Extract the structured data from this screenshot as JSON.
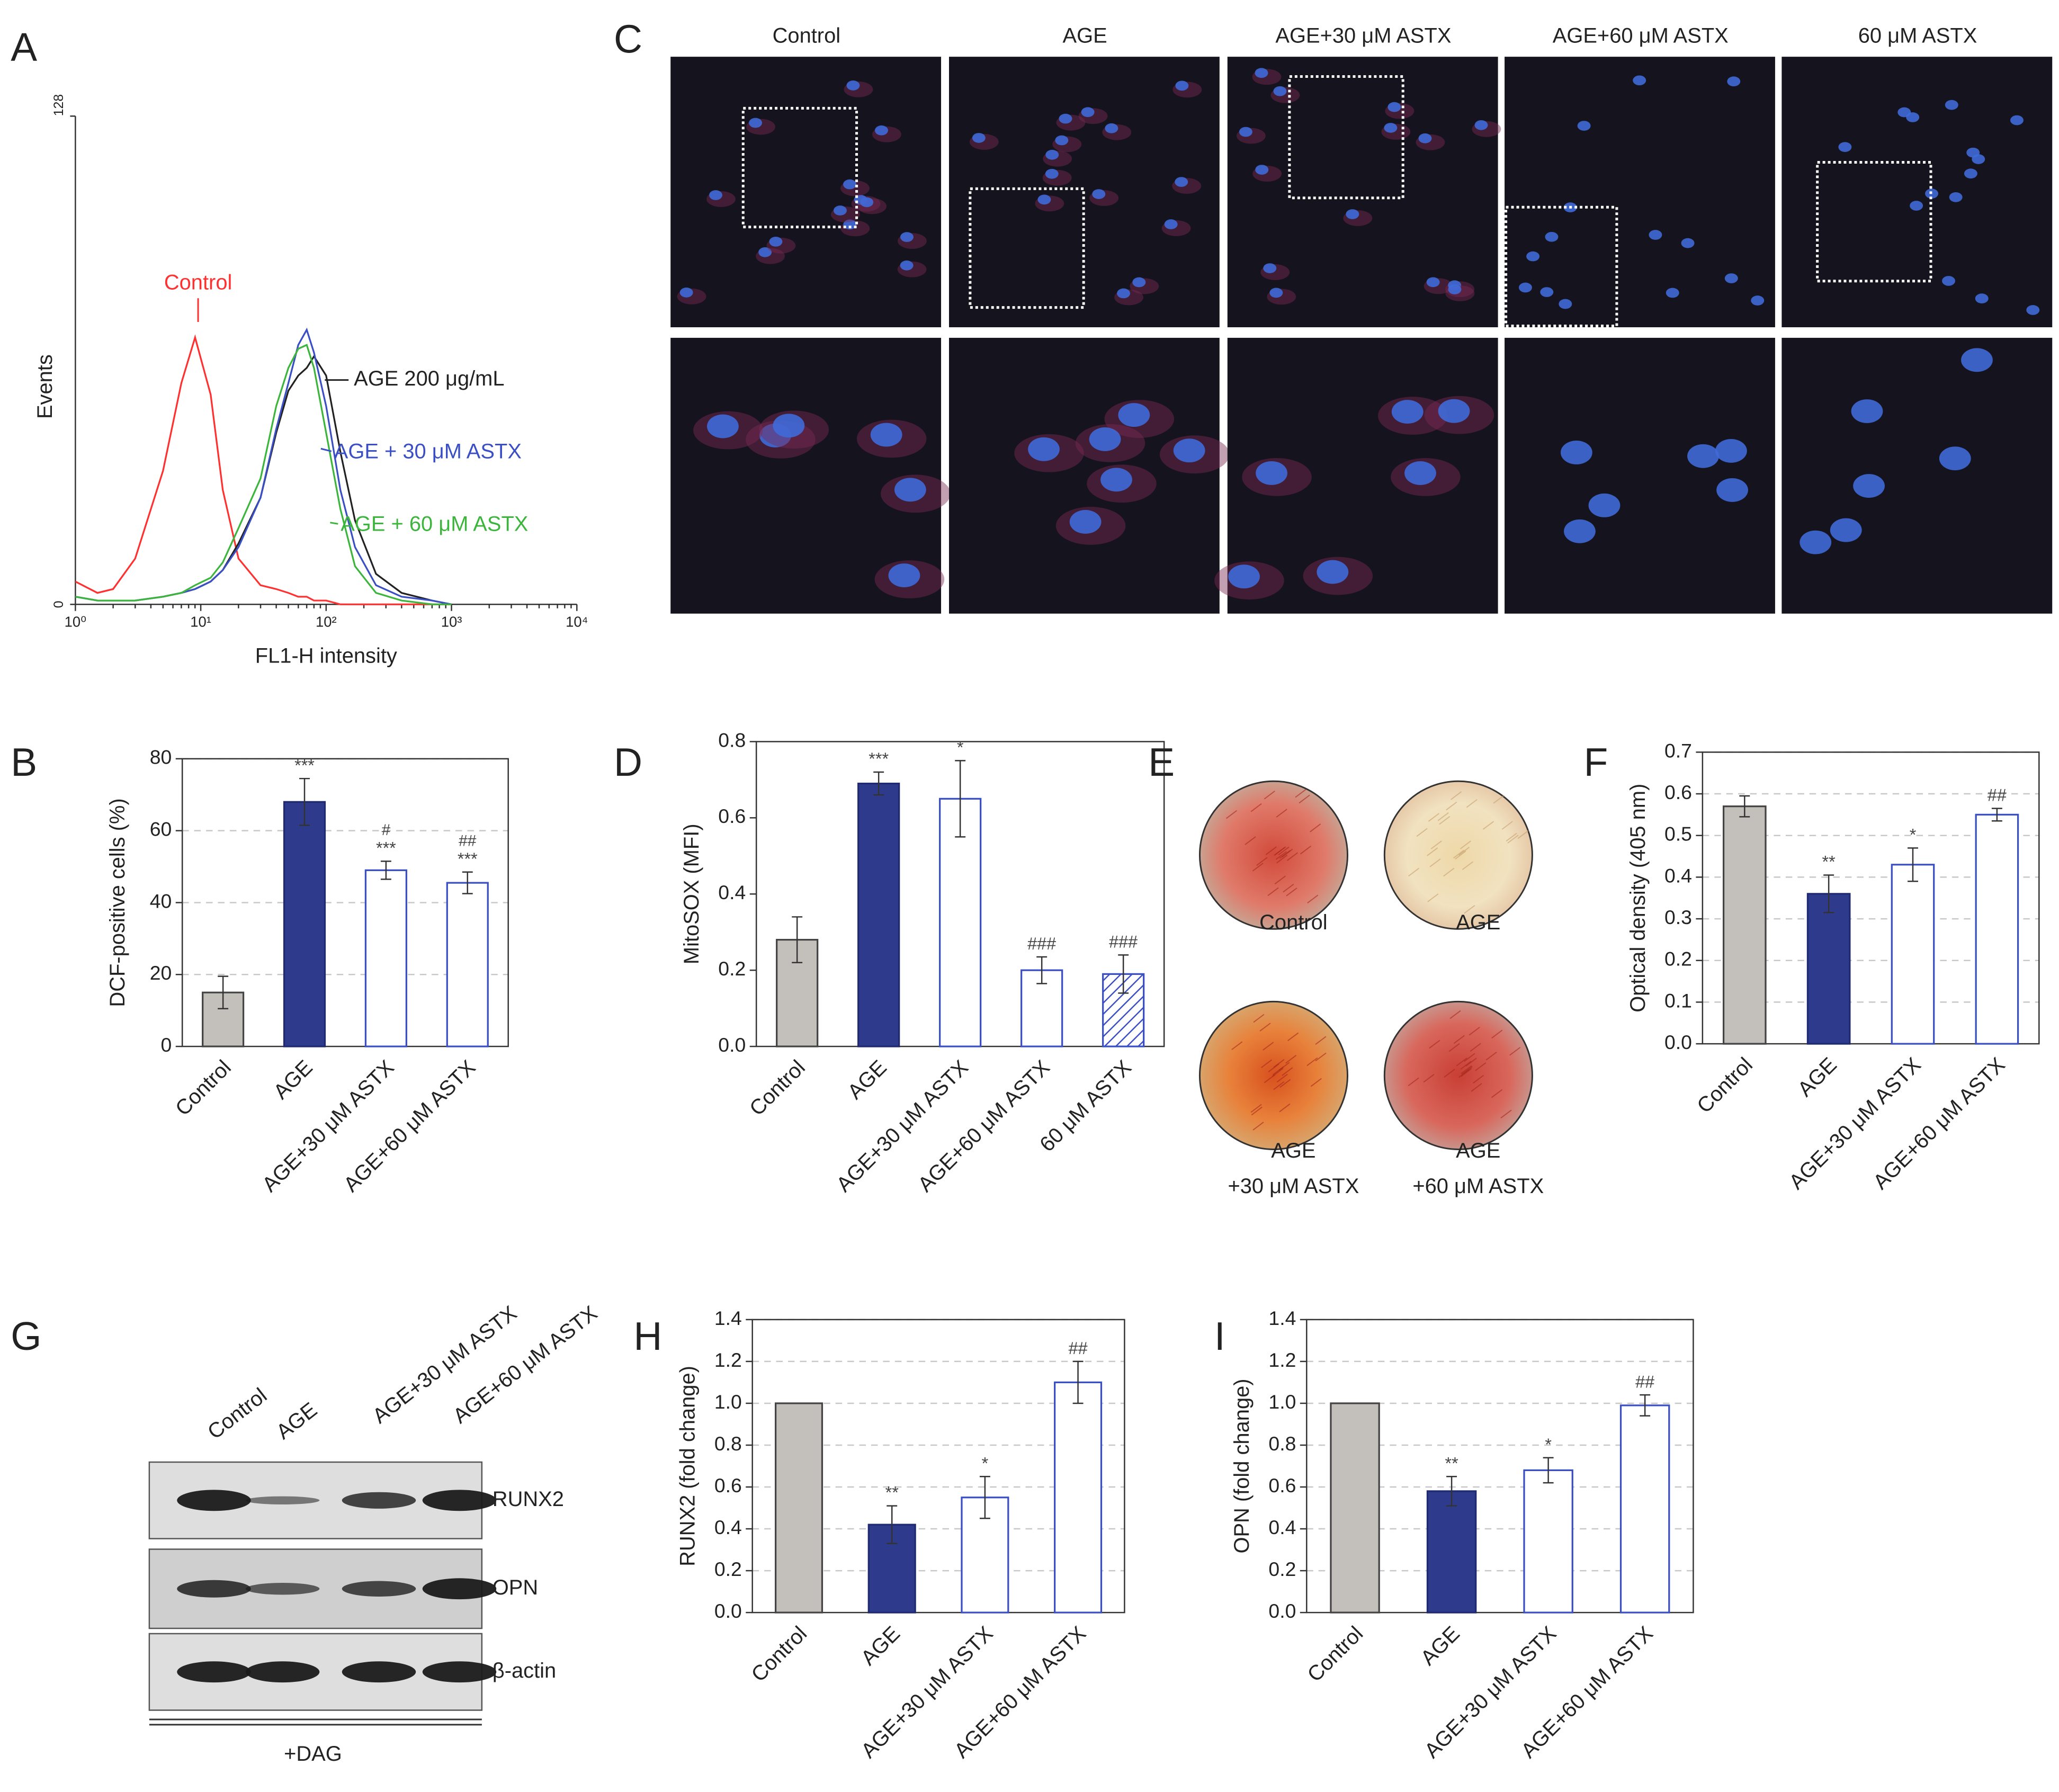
{
  "chart_data": [
    {
      "type": "line",
      "panel": "A",
      "xlabel": "FL1-H intensity",
      "ylabel": "Events",
      "xscale": "log",
      "xlim": [
        1,
        10000
      ],
      "xticks": [
        {
          "value": 1,
          "label": "10⁰"
        },
        {
          "value": 10,
          "label": "10¹"
        },
        {
          "value": 100,
          "label": "10²"
        },
        {
          "value": 1000,
          "label": "10³"
        },
        {
          "value": 10000,
          "label": "10⁴"
        }
      ],
      "ylim": [
        0,
        128
      ],
      "yticks": [
        0,
        128
      ],
      "x": [
        1,
        1.5,
        2,
        3,
        5,
        7,
        9,
        12,
        15,
        20,
        30,
        40,
        50,
        60,
        70,
        80,
        100,
        130,
        170,
        250,
        400,
        700,
        1000
      ],
      "series": [
        {
          "name": "Control",
          "color": "#ff3030",
          "values": [
            6,
            3,
            4,
            12,
            35,
            58,
            70,
            55,
            30,
            12,
            5,
            4,
            3,
            2,
            2,
            1,
            1,
            0,
            0,
            0,
            0,
            0,
            0
          ]
        },
        {
          "name": "AGE 200 μg/mL",
          "color": "#222222",
          "values": [
            2,
            1,
            1,
            1,
            2,
            3,
            4,
            6,
            9,
            16,
            28,
            45,
            56,
            60,
            62,
            65,
            60,
            40,
            22,
            8,
            3,
            1,
            0
          ]
        },
        {
          "name": "AGE + 30 μM ASTX",
          "color": "#3b4fc4",
          "values": [
            2,
            1,
            1,
            1,
            2,
            3,
            4,
            6,
            9,
            15,
            28,
            46,
            58,
            68,
            72,
            66,
            52,
            30,
            15,
            5,
            2,
            1,
            0
          ]
        },
        {
          "name": "AGE + 60 μM ASTX",
          "color": "#3cb53c",
          "values": [
            2,
            1,
            1,
            1,
            2,
            3,
            5,
            7,
            11,
            20,
            33,
            52,
            62,
            67,
            68,
            62,
            45,
            25,
            10,
            3,
            1,
            0,
            0
          ]
        }
      ]
    },
    {
      "type": "bar",
      "panel": "B",
      "ylabel": "DCF-positive cells (%)",
      "grid": true,
      "categories": [
        "Control",
        "AGE",
        "AGE+30 μM ASTX",
        "AGE+60 μM ASTX"
      ],
      "values": [
        15,
        68,
        49,
        45.5
      ],
      "errors": [
        4.5,
        6.5,
        2.5,
        3
      ],
      "colors": [
        "#c3bfbb",
        "#2e3a8c",
        "#ffffff",
        "#ffffff"
      ],
      "edge_colors": [
        "#444444",
        "#1f2a70",
        "#3b4fc4",
        "#3b4fc4"
      ],
      "significance": [
        null,
        "***",
        "***",
        "***"
      ],
      "significance_vs_age": [
        null,
        null,
        "#",
        "##"
      ],
      "ylim": [
        0,
        80
      ],
      "yticks": [
        0,
        20,
        40,
        60,
        80
      ]
    },
    {
      "type": "bar",
      "panel": "D",
      "ylabel": "MitoSOX (MFI)",
      "grid": false,
      "categories": [
        "Control",
        "AGE",
        "AGE+30 μM ASTX",
        "AGE+60 μM ASTX",
        "60 μM ASTX"
      ],
      "values": [
        0.28,
        0.69,
        0.65,
        0.2,
        0.19
      ],
      "errors": [
        0.06,
        0.03,
        0.1,
        0.035,
        0.05
      ],
      "colors": [
        "#c3bfbb",
        "#2e3a8c",
        "#ffffff",
        "#ffffff",
        "#ffffff"
      ],
      "edge_colors": [
        "#444444",
        "#1f2a70",
        "#3b4fc4",
        "#3b4fc4",
        "#3b4fc4"
      ],
      "hatch": [
        false,
        false,
        false,
        false,
        true
      ],
      "significance": [
        null,
        "***",
        "*",
        "###",
        "###"
      ],
      "ylim": [
        0,
        0.8
      ],
      "yticks": [
        {
          "value": 0,
          "label": "0.0"
        },
        0.2,
        0.4,
        0.6,
        0.8
      ]
    },
    {
      "type": "bar",
      "panel": "F",
      "ylabel": "Optical density (405 nm)",
      "grid": true,
      "categories": [
        "Control",
        "AGE",
        "AGE+30 μM ASTX",
        "AGE+60 μM ASTX"
      ],
      "values": [
        0.57,
        0.36,
        0.43,
        0.55
      ],
      "errors": [
        0.025,
        0.045,
        0.04,
        0.015
      ],
      "colors": [
        "#c3bfbb",
        "#2e3a8c",
        "#ffffff",
        "#ffffff"
      ],
      "edge_colors": [
        "#444444",
        "#1f2a70",
        "#3b4fc4",
        "#3b4fc4"
      ],
      "significance": [
        null,
        "**",
        "*",
        "##"
      ],
      "ylim": [
        0,
        0.7
      ],
      "yticks": [
        {
          "value": 0,
          "label": "0.0"
        },
        0.1,
        0.2,
        0.3,
        0.4,
        0.5,
        0.6,
        0.7
      ]
    },
    {
      "type": "bar",
      "panel": "H",
      "ylabel": "RUNX2 (fold change)",
      "grid": true,
      "categories": [
        "Control",
        "AGE",
        "AGE+30 μM ASTX",
        "AGE+60 μM ASTX"
      ],
      "values": [
        1.0,
        0.42,
        0.55,
        1.1
      ],
      "errors": [
        null,
        0.09,
        0.1,
        0.1
      ],
      "colors": [
        "#c3bfbb",
        "#2e3a8c",
        "#ffffff",
        "#ffffff"
      ],
      "edge_colors": [
        "#444444",
        "#1f2a70",
        "#3b4fc4",
        "#3b4fc4"
      ],
      "significance": [
        null,
        "**",
        "*",
        "##"
      ],
      "ylim": [
        0,
        1.4
      ],
      "yticks": [
        {
          "value": 0,
          "label": "0.0"
        },
        0.2,
        0.4,
        0.6,
        0.8,
        {
          "value": 1,
          "label": "1.0"
        },
        1.2,
        1.4
      ]
    },
    {
      "type": "bar",
      "panel": "I",
      "ylabel": "OPN (fold change)",
      "grid": true,
      "categories": [
        "Control",
        "AGE",
        "AGE+30 μM ASTX",
        "AGE+60 μM ASTX"
      ],
      "values": [
        1.0,
        0.58,
        0.68,
        0.99
      ],
      "errors": [
        null,
        0.07,
        0.06,
        0.05
      ],
      "colors": [
        "#c3bfbb",
        "#2e3a8c",
        "#ffffff",
        "#ffffff"
      ],
      "edge_colors": [
        "#444444",
        "#1f2a70",
        "#3b4fc4",
        "#3b4fc4"
      ],
      "significance": [
        null,
        "**",
        "*",
        "##"
      ],
      "ylim": [
        0,
        1.4
      ],
      "yticks": [
        {
          "value": 0,
          "label": "0.0"
        },
        0.2,
        0.4,
        0.6,
        0.8,
        {
          "value": 1,
          "label": "1.0"
        },
        1.2,
        1.4
      ]
    }
  ],
  "micrographs": {
    "panel": "C",
    "columns": [
      "Control",
      "AGE",
      "AGE+30 μM ASTX",
      "AGE+60 μM ASTX",
      "60 μM ASTX"
    ]
  },
  "staining": {
    "panel": "E",
    "wells": [
      {
        "lines": [
          "Control"
        ]
      },
      {
        "lines": [
          "AGE"
        ]
      },
      {
        "lines": [
          "AGE",
          "+30 μM ASTX"
        ]
      },
      {
        "lines": [
          "AGE",
          "+60 μM ASTX"
        ]
      }
    ]
  },
  "western_blot": {
    "panel": "G",
    "lanes": [
      "Control",
      "AGE",
      "AGE+30 μM ASTX",
      "AGE+60 μM ASTX"
    ],
    "rows": [
      "RUNX2",
      "OPN",
      "β-actin"
    ],
    "footer": "+DAG"
  }
}
